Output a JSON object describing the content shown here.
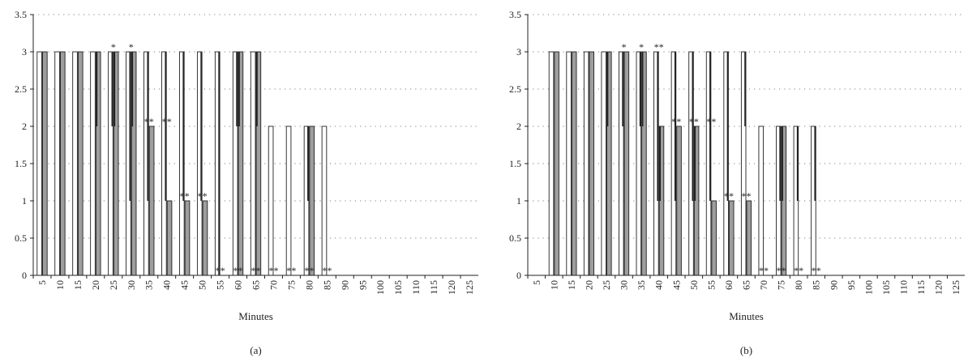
{
  "chart_data": [
    {
      "type": "bar",
      "panel_label": "(a)",
      "xlabel": "Minutes",
      "ylabel": "",
      "ylim": [
        0,
        3.5
      ],
      "yticks": [
        "0",
        "0.5",
        "1",
        "1.5",
        "2",
        "2.5",
        "3",
        "3.5"
      ],
      "ytick_values": [
        0,
        0.5,
        1,
        1.5,
        2,
        2.5,
        3,
        3.5
      ],
      "grid": "dotted horizontal",
      "categories": [
        "5",
        "10",
        "15",
        "20",
        "25",
        "30",
        "35",
        "40",
        "45",
        "50",
        "55",
        "60",
        "65",
        "70",
        "75",
        "80",
        "85",
        "90",
        "95",
        "100",
        "105",
        "110",
        "115",
        "120",
        "125"
      ],
      "series": [
        {
          "fill": "#ffffff",
          "values": [
            3,
            3,
            3,
            3,
            3,
            3,
            3,
            3,
            3,
            3,
            3,
            3,
            3,
            2,
            2,
            2,
            2,
            0,
            0,
            0,
            0,
            0,
            0,
            0,
            0
          ],
          "lower": [
            3,
            3,
            3,
            3,
            2,
            1,
            1,
            1,
            1,
            1,
            0,
            2,
            3,
            2,
            2,
            1,
            2,
            0,
            0,
            0,
            0,
            0,
            0,
            0,
            0
          ]
        },
        {
          "fill": "#9e9e9e",
          "values": [
            3,
            3,
            3,
            3,
            3,
            3,
            2,
            1,
            1,
            1,
            0,
            3,
            3,
            0,
            0,
            2,
            0,
            0,
            0,
            0,
            0,
            0,
            0,
            0,
            0
          ],
          "lower": [
            3,
            3,
            3,
            2,
            2,
            2,
            2,
            1,
            1,
            1,
            0,
            2,
            2,
            0,
            0,
            2,
            0,
            0,
            0,
            0,
            0,
            0,
            0,
            0,
            0
          ]
        }
      ],
      "annotations": [
        "",
        "",
        "",
        "",
        "*",
        "*",
        "**",
        "**",
        "**",
        "**",
        "**",
        "**",
        "**",
        "**",
        "**",
        "**",
        "**",
        "",
        "",
        "",
        "",
        "",
        "",
        "",
        ""
      ],
      "annotation_y": [
        0,
        0,
        0,
        0,
        3,
        3,
        2,
        2,
        1,
        1,
        0,
        0,
        0,
        0,
        0,
        0,
        0,
        0,
        0,
        0,
        0,
        0,
        0,
        0,
        0
      ]
    },
    {
      "type": "bar",
      "panel_label": "(b)",
      "xlabel": "Minutes",
      "ylabel": "",
      "ylim": [
        0,
        3.5
      ],
      "yticks": [
        "0",
        "0.5",
        "1",
        "1.5",
        "2",
        "2.5",
        "3",
        "3.5"
      ],
      "ytick_values": [
        0,
        0.5,
        1,
        1.5,
        2,
        2.5,
        3,
        3.5
      ],
      "grid": "dotted horizontal",
      "categories": [
        "5",
        "10",
        "15",
        "20",
        "25",
        "30",
        "35",
        "40",
        "45",
        "50",
        "55",
        "60",
        "65",
        "70",
        "75",
        "80",
        "85",
        "90",
        "95",
        "100",
        "105",
        "110",
        "115",
        "120",
        "125"
      ],
      "series": [
        {
          "fill": "#ffffff",
          "values": [
            0,
            3,
            3,
            3,
            3,
            3,
            3,
            3,
            3,
            3,
            3,
            3,
            3,
            2,
            2,
            2,
            2,
            0,
            0,
            0,
            0,
            0,
            0,
            0,
            0
          ],
          "lower": [
            0,
            3,
            3,
            3,
            3,
            2,
            2,
            1,
            1,
            1,
            1,
            1,
            2,
            2,
            1,
            1,
            1,
            0,
            0,
            0,
            0,
            0,
            0,
            0,
            0
          ]
        },
        {
          "fill": "#9e9e9e",
          "values": [
            0,
            3,
            3,
            3,
            3,
            3,
            3,
            2,
            2,
            2,
            1,
            1,
            1,
            0,
            2,
            0,
            0,
            0,
            0,
            0,
            0,
            0,
            0,
            0,
            0
          ],
          "lower": [
            0,
            3,
            3,
            3,
            2,
            3,
            2,
            1,
            2,
            1,
            1,
            1,
            1,
            0,
            1,
            0,
            0,
            0,
            0,
            0,
            0,
            0,
            0,
            0,
            0
          ]
        }
      ],
      "annotations": [
        "",
        "",
        "",
        "",
        "",
        "*",
        "*",
        "**",
        "**",
        "**",
        "**",
        "**",
        "**",
        "**",
        "**",
        "**",
        "**",
        "",
        "",
        "",
        "",
        "",
        "",
        "",
        ""
      ],
      "annotation_y": [
        0,
        0,
        0,
        0,
        0,
        3,
        3,
        3,
        2,
        2,
        2,
        1,
        1,
        0,
        0,
        0,
        0,
        0,
        0,
        0,
        0,
        0,
        0,
        0,
        0
      ]
    }
  ]
}
